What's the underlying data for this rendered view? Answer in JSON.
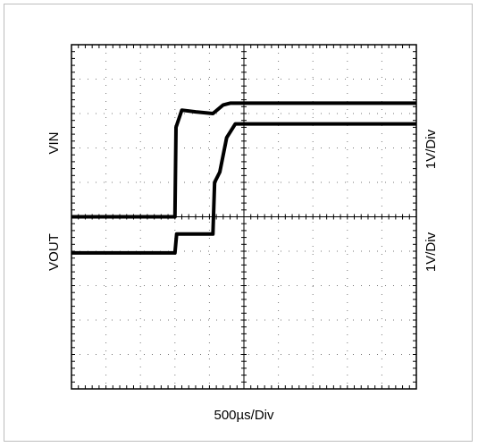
{
  "chart_data": {
    "type": "line",
    "title": "",
    "grid": true,
    "xlabel": "500µs/Div",
    "x_divisions": 10,
    "y_divisions": 10,
    "channels": [
      {
        "name": "VIN",
        "scale": "1V/Div",
        "x": [
          0.0,
          3.0,
          3.03,
          3.2,
          3.6,
          4.1,
          4.4,
          4.6,
          10.0
        ],
        "y": [
          5.0,
          5.0,
          7.6,
          8.1,
          8.05,
          8.0,
          8.25,
          8.3,
          8.3
        ]
      },
      {
        "name": "VOUT",
        "scale": "1V/Div",
        "x": [
          0.0,
          3.0,
          3.05,
          4.1,
          4.15,
          4.3,
          4.5,
          4.75,
          10.0
        ],
        "y": [
          3.95,
          3.95,
          4.5,
          4.5,
          6.0,
          6.3,
          7.3,
          7.7,
          7.7
        ]
      }
    ]
  }
}
